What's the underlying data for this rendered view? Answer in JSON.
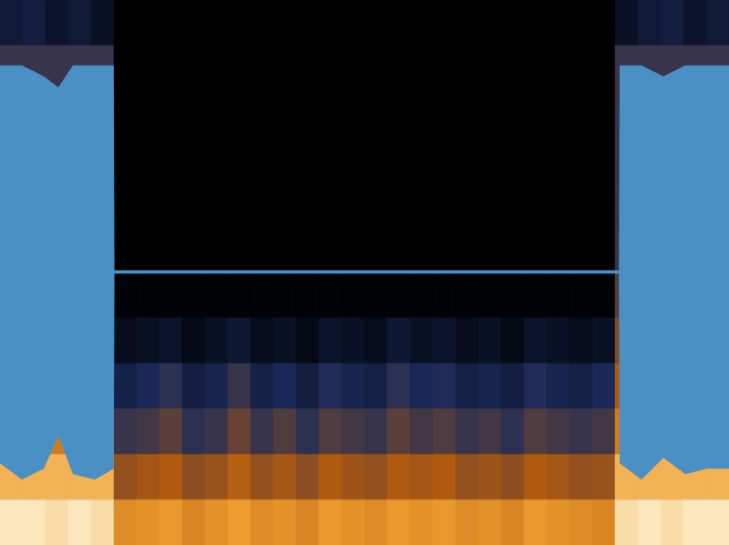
{
  "chart_data": {
    "type": "heatmap",
    "xlim": [
      0,
      100
    ],
    "ylim": [
      0,
      100
    ],
    "tick_labels": false,
    "grid": false,
    "cells": [
      [
        0.15,
        0.18,
        0.12,
        0.15,
        0.1,
        0,
        0,
        0,
        0,
        0,
        0,
        0,
        0,
        0,
        0,
        0,
        0,
        0,
        0,
        0,
        0,
        0,
        0,
        0,
        0,
        0,
        0,
        0.1,
        0.15,
        0.18,
        0.12,
        0.15
      ],
      [
        0.3,
        0.3,
        0.3,
        0.3,
        0.3,
        0,
        0,
        0,
        0,
        0,
        0,
        0,
        0,
        0,
        0,
        0,
        0,
        0,
        0,
        0,
        0,
        0,
        0,
        0,
        0,
        0,
        0,
        0.3,
        0.3,
        0.3,
        0.3,
        0.3
      ],
      [
        0.3,
        0.3,
        0.3,
        0.3,
        0.3,
        0,
        0,
        0,
        0,
        0,
        0,
        0,
        0,
        0,
        0,
        0,
        0,
        0,
        0,
        0,
        0,
        0,
        0,
        0,
        0,
        0,
        0,
        0.3,
        0.3,
        0.3,
        0.3,
        0.3
      ],
      [
        0.3,
        0.3,
        0.3,
        0.3,
        0.3,
        0,
        0,
        0,
        0,
        0,
        0,
        0,
        0,
        0,
        0,
        0,
        0,
        0,
        0,
        0,
        0,
        0,
        0,
        0,
        0,
        0,
        0,
        0.3,
        0.3,
        0.3,
        0.3,
        0.3
      ],
      [
        0.3,
        0.3,
        0.3,
        0.3,
        0.3,
        0,
        0,
        0,
        0,
        0,
        0,
        0,
        0,
        0,
        0,
        0,
        0,
        0,
        0,
        0,
        0,
        0,
        0,
        0,
        0,
        0,
        0,
        0.3,
        0.3,
        0.3,
        0.3,
        0.3
      ],
      [
        0.3,
        0.3,
        0.3,
        0.3,
        0.3,
        0,
        0,
        0,
        0,
        0,
        0,
        0,
        0,
        0,
        0,
        0,
        0,
        0,
        0,
        0,
        0,
        0,
        0,
        0,
        0,
        0,
        0,
        0.3,
        0.3,
        0.3,
        0.3,
        0.3
      ],
      [
        0.35,
        0.35,
        0.35,
        0.35,
        0.35,
        0.02,
        0.02,
        0.02,
        0.02,
        0.02,
        0.02,
        0.02,
        0.02,
        0.02,
        0.02,
        0.02,
        0.02,
        0.02,
        0.02,
        0.02,
        0.02,
        0.02,
        0.02,
        0.02,
        0.02,
        0.02,
        0.02,
        0.35,
        0.35,
        0.35,
        0.35,
        0.35
      ],
      [
        0.42,
        0.42,
        0.42,
        0.42,
        0.42,
        0.08,
        0.1,
        0.12,
        0.06,
        0.1,
        0.14,
        0.08,
        0.1,
        0.06,
        0.12,
        0.1,
        0.08,
        0.14,
        0.1,
        0.12,
        0.08,
        0.1,
        0.06,
        0.12,
        0.1,
        0.08,
        0.1,
        0.42,
        0.42,
        0.42,
        0.42,
        0.42
      ],
      [
        0.5,
        0.5,
        0.5,
        0.5,
        0.5,
        0.2,
        0.24,
        0.28,
        0.18,
        0.22,
        0.3,
        0.2,
        0.24,
        0.18,
        0.26,
        0.22,
        0.2,
        0.28,
        0.24,
        0.26,
        0.2,
        0.22,
        0.18,
        0.26,
        0.22,
        0.2,
        0.24,
        0.5,
        0.5,
        0.5,
        0.5,
        0.5
      ],
      [
        0.62,
        0.62,
        0.62,
        0.62,
        0.62,
        0.3,
        0.32,
        0.36,
        0.28,
        0.3,
        0.38,
        0.3,
        0.34,
        0.28,
        0.34,
        0.32,
        0.3,
        0.36,
        0.32,
        0.34,
        0.3,
        0.32,
        0.28,
        0.34,
        0.32,
        0.3,
        0.32,
        0.62,
        0.62,
        0.62,
        0.62,
        0.62
      ],
      [
        0.8,
        0.8,
        0.8,
        0.8,
        0.8,
        0.45,
        0.48,
        0.5,
        0.44,
        0.46,
        0.52,
        0.45,
        0.48,
        0.44,
        0.5,
        0.47,
        0.45,
        0.5,
        0.48,
        0.5,
        0.45,
        0.47,
        0.44,
        0.5,
        0.48,
        0.45,
        0.46,
        0.8,
        0.8,
        0.8,
        0.8,
        0.8
      ],
      [
        0.95,
        0.95,
        0.92,
        0.95,
        0.92,
        0.68,
        0.7,
        0.72,
        0.66,
        0.7,
        0.74,
        0.68,
        0.7,
        0.66,
        0.72,
        0.7,
        0.68,
        0.72,
        0.7,
        0.72,
        0.68,
        0.7,
        0.66,
        0.72,
        0.7,
        0.68,
        0.66,
        0.92,
        0.95,
        0.92,
        0.95,
        0.95
      ]
    ],
    "overlay": {
      "type": "area",
      "color": "#4a90c4",
      "x": [
        0,
        3,
        6,
        8,
        10,
        13,
        15.6,
        15.7,
        50,
        84.9,
        85,
        88,
        91,
        94,
        97,
        100
      ],
      "low": [
        15,
        12,
        14,
        20,
        13,
        12,
        14,
        49.8,
        49.8,
        49.8,
        15,
        12,
        16,
        13,
        14,
        14
      ],
      "high": [
        88,
        88,
        86,
        84,
        88,
        88,
        88,
        50.4,
        50.4,
        50.4,
        88,
        88,
        86,
        88,
        88,
        88
      ]
    }
  }
}
